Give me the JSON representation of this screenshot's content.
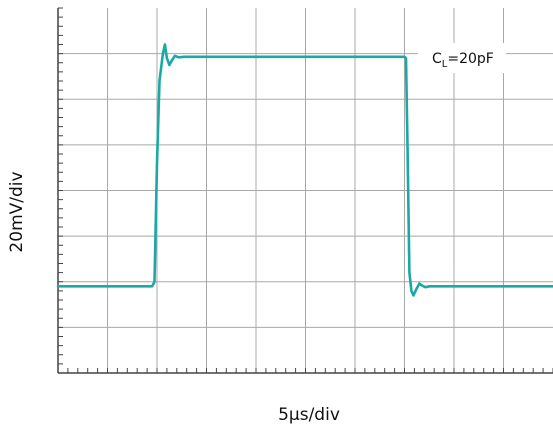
{
  "chart_data": {
    "type": "line",
    "xlabel": "5µs/div",
    "ylabel": "20mV/div",
    "annotation": {
      "base": "C",
      "subscript": "L",
      "rest": "=20pF"
    },
    "grid": true,
    "xlim": [
      0,
      10
    ],
    "ylim": [
      0,
      8
    ],
    "colors": {
      "trace": "#1aa9a5",
      "grid": "#a8a8a8",
      "frame": "#444444"
    },
    "series": [
      {
        "points": [
          [
            0,
            1.9
          ],
          [
            1.9,
            1.9
          ],
          [
            1.95,
            2.0
          ],
          [
            2.0,
            4.6
          ],
          [
            2.05,
            6.4
          ],
          [
            2.12,
            7.0
          ],
          [
            2.16,
            7.2
          ],
          [
            2.2,
            6.9
          ],
          [
            2.25,
            6.75
          ],
          [
            2.3,
            6.85
          ],
          [
            2.36,
            6.95
          ],
          [
            2.44,
            6.92
          ],
          [
            2.55,
            6.93
          ],
          [
            7.0,
            6.93
          ],
          [
            7.03,
            6.9
          ],
          [
            7.06,
            5.0
          ],
          [
            7.1,
            2.2
          ],
          [
            7.14,
            1.8
          ],
          [
            7.18,
            1.7
          ],
          [
            7.24,
            1.84
          ],
          [
            7.3,
            1.96
          ],
          [
            7.35,
            1.92
          ],
          [
            7.42,
            1.88
          ],
          [
            7.5,
            1.9
          ],
          [
            10,
            1.9
          ]
        ]
      }
    ]
  }
}
